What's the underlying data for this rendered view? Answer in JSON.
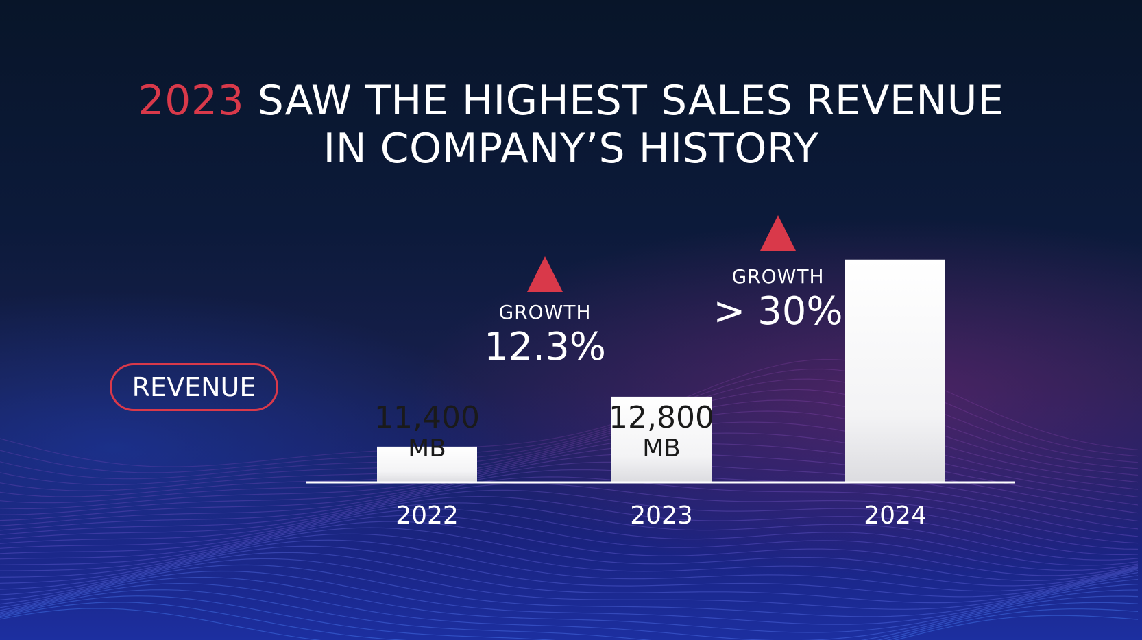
{
  "title": {
    "accent": "2023",
    "line1_rest": " SAW THE HIGHEST SALES REVENUE",
    "line2": "IN COMPANY’S HISTORY"
  },
  "revenue_label": "REVENUE",
  "growth": [
    {
      "label": "GROWTH",
      "value": "12.3%"
    },
    {
      "label": "GROWTH",
      "value": "> 30%"
    }
  ],
  "colors": {
    "accent": "#d9394a",
    "bar": "#ffffff",
    "text": "#ffffff",
    "bar_label": "#1a1a1a"
  },
  "chart_data": {
    "type": "bar",
    "categories": [
      "2022",
      "2023",
      "2024"
    ],
    "values": [
      11400,
      12800,
      16640
    ],
    "data_labels": [
      {
        "value": "11,400",
        "unit": "MB"
      },
      {
        "value": "12,800",
        "unit": "MB"
      },
      {
        "value": "",
        "unit": ""
      }
    ],
    "ylim": [
      0,
      17000
    ],
    "baseline_value": 10400,
    "grid": false,
    "legend": "none"
  }
}
